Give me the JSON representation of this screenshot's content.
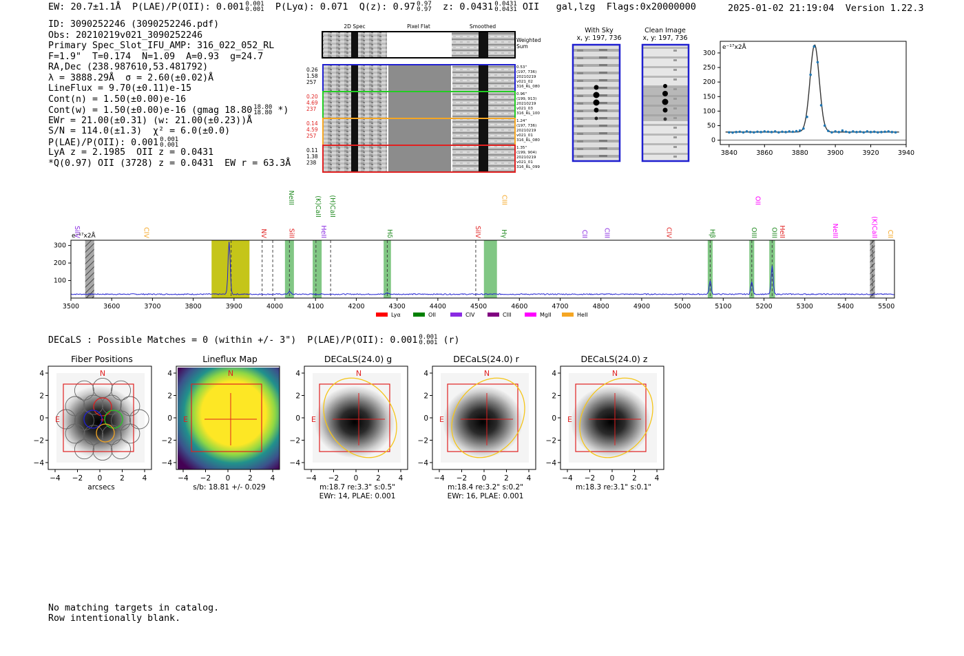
{
  "header": {
    "ew": "EW: 20.7±1.1Å",
    "plae_label": "P(LAE)/P(OII): 0.001",
    "plae_hi": "0.001",
    "plae_lo": "0.001",
    "plya": "P(Lyα): 0.071",
    "qz_label": "Q(z): 0.97",
    "qz_hi": "0.97",
    "qz_lo": "0.97",
    "z_label": "z: 0.0431",
    "z_hi": "0.0431",
    "z_lo": "0.0431",
    "line": "OII",
    "class": "gal,lzg",
    "flags": "Flags:0x20000000",
    "timestamp": "2025-01-02 21:19:04",
    "version": "Version 1.22.3"
  },
  "info": {
    "id": "ID: 3090252246 (3090252246.pdf)",
    "obs": "Obs: 20210219v021_3090252246",
    "primary": "Primary Spec_Slot_IFU_AMP: 316_022_052_RL",
    "params": "F=1.9\"  T=0.174  N=1.09  A=0.93  g=24.7",
    "radec": "RA,Dec (238.987610,53.481792)",
    "lambda": "λ = 3888.29Å  σ = 2.60(±0.02)Å",
    "lineflux": "LineFlux = 9.70(±0.11)e-15",
    "contn": "Cont(n) = 1.50(±0.00)e-16",
    "contw_a": "Cont(w) = 1.50(±0.00)e-16 (gmag 18.80",
    "contw_hi": "18.80",
    "contw_lo": "18.80",
    "contw_b": "*)",
    "ewr": "EWr = 21.00(±0.31) (w: 21.00(±0.23))Å",
    "sn": "S/N = 114.0(±1.3)  χ² = 6.0(±0.0)",
    "plae_a": "P(LAE)/P(OII): 0.001",
    "plae_hi": "0.001",
    "plae_lo": "0.001",
    "lya": "LyA z = 2.1985  OII z = 0.0431",
    "q": "*Q(0.97) OII (3728) z = 0.0431  EW r = 63.3Å"
  },
  "fibers": {
    "col_titles": [
      "2D Spec",
      "Pixel Flat",
      "Smoothed"
    ],
    "weighted_label_1": "Weighted",
    "weighted_label_2": "Sum",
    "rows": [
      {
        "color": "#1f1fd0",
        "stats": [
          "0.26",
          "1.58",
          "257"
        ],
        "stat_color": "#000000",
        "info": [
          "0.53\"",
          "(197, 736)",
          "20210219",
          "v021_02",
          "316_RL_080"
        ]
      },
      {
        "color": "#22cc22",
        "stats": [
          "0.20",
          "4.69",
          "237"
        ],
        "stat_color": "#e02020",
        "info": [
          "0.96\"",
          "(199, 913)",
          "20210219",
          "v021_03",
          "316_RL_100"
        ]
      },
      {
        "color": "#f5a623",
        "stats": [
          "0.14",
          "4.59",
          "257"
        ],
        "stat_color": "#e02020",
        "info": [
          "1.24\"",
          "(197, 736)",
          "20210219",
          "v021_01",
          "316_RL_080"
        ]
      },
      {
        "color": "#e02020",
        "stats": [
          "0.11",
          "1.38",
          "238"
        ],
        "stat_color": "#000000",
        "info": [
          "1.35\"",
          "(199, 904)",
          "20210219",
          "v021_01",
          "316_RL_099"
        ]
      }
    ]
  },
  "sky": {
    "with_sky_title": "With Sky",
    "with_sky_coords": "x, y: 197, 736",
    "clean_title": "Clean Image",
    "clean_coords": "x, y: 197, 736"
  },
  "zoom_plot": {
    "unit_label": "e⁻¹⁷x2Å",
    "chart_data": {
      "type": "line",
      "xlim": [
        3835,
        3940
      ],
      "ylim": [
        -15,
        340
      ],
      "xticks": [
        3840,
        3860,
        3880,
        3900,
        3920,
        3940
      ],
      "yticks": [
        0,
        50,
        100,
        150,
        200,
        250,
        300
      ],
      "fit_center": 3888.3,
      "fit_sigma": 2.6,
      "fit_peak": 300,
      "fit_cont": 28,
      "points_x": [
        3840,
        3842,
        3844,
        3846,
        3848,
        3850,
        3852,
        3854,
        3856,
        3858,
        3860,
        3862,
        3864,
        3866,
        3868,
        3870,
        3872,
        3874,
        3876,
        3878,
        3880,
        3882,
        3884,
        3886,
        3888,
        3890,
        3892,
        3894,
        3896,
        3898,
        3900,
        3902,
        3904,
        3906,
        3908,
        3910,
        3912,
        3914,
        3916,
        3918,
        3920,
        3922,
        3924,
        3926,
        3928,
        3930,
        3932,
        3934
      ],
      "points_y": [
        27,
        26,
        28,
        29,
        27,
        30,
        28,
        27,
        29,
        28,
        30,
        29,
        28,
        30,
        27,
        29,
        28,
        30,
        29,
        31,
        33,
        40,
        80,
        225,
        322,
        268,
        120,
        50,
        32,
        27,
        30,
        28,
        33,
        29,
        27,
        30,
        28,
        29,
        27,
        30,
        28,
        29,
        27,
        28,
        29,
        30,
        28,
        27
      ]
    }
  },
  "main_spectrum": {
    "unit_label": "e⁻¹⁷x2Å",
    "chart_data": {
      "type": "line",
      "xlim": [
        3500,
        5520
      ],
      "ylim": [
        0,
        330
      ],
      "xticks": [
        3500,
        3600,
        3700,
        3800,
        3900,
        4000,
        4100,
        4200,
        4300,
        4400,
        4500,
        4600,
        4700,
        4800,
        4900,
        5000,
        5100,
        5200,
        5300,
        5400,
        5500
      ],
      "yticks": [
        100,
        200,
        300
      ],
      "continuum": 22,
      "peaks": [
        {
          "x": 3888,
          "h": 300,
          "s": 2.6
        },
        {
          "x": 4036,
          "h": 15,
          "s": 3
        },
        {
          "x": 4276,
          "h": 8,
          "s": 3
        },
        {
          "x": 5068,
          "h": 75,
          "s": 2.5
        },
        {
          "x": 5170,
          "h": 70,
          "s": 2.5
        },
        {
          "x": 5220,
          "h": 160,
          "s": 2.5
        }
      ],
      "yellow_band": [
        3845,
        3938
      ],
      "green_bands": [
        [
          4025,
          4047
        ],
        [
          4093,
          4115
        ],
        [
          4267,
          4285
        ],
        [
          4513,
          4545
        ],
        [
          5062,
          5074
        ],
        [
          5164,
          5176
        ],
        [
          5213,
          5227
        ]
      ],
      "hatched_bands": [
        [
          3535,
          3557
        ],
        [
          5460,
          5472
        ]
      ],
      "dashed_lines": [
        3893,
        3969,
        3995,
        4036,
        4101,
        4137,
        4276,
        4493,
        5068,
        5170,
        5220,
        5466
      ],
      "line_labels": [
        {
          "text": "SiIV",
          "x": 3510,
          "color": "#8a2be2",
          "tier": 0
        },
        {
          "text": "CIV",
          "x": 3680,
          "color": "#f5a623",
          "tier": 0
        },
        {
          "text": "NeIII",
          "x": 4035,
          "color": "#228b22",
          "tier": 2
        },
        {
          "text": "NV",
          "x": 3968,
          "color": "#e02020",
          "tier": 0
        },
        {
          "text": "SiII",
          "x": 4036,
          "color": "#e02020",
          "tier": 0
        },
        {
          "text": "(K)CaII",
          "x": 4101,
          "color": "#228b22",
          "tier": 1
        },
        {
          "text": "HeII",
          "x": 4115,
          "color": "#8a2be2",
          "tier": 0
        },
        {
          "text": "(H)CaII",
          "x": 4137,
          "color": "#228b22",
          "tier": 1
        },
        {
          "text": "Hδ",
          "x": 4277,
          "color": "#228b22",
          "tier": 0
        },
        {
          "text": "SiIV",
          "x": 4493,
          "color": "#e02020",
          "tier": 0
        },
        {
          "text": "CIII",
          "x": 4558,
          "color": "#f5a623",
          "tier": 2
        },
        {
          "text": "Hγ",
          "x": 4557,
          "color": "#228b22",
          "tier": 0
        },
        {
          "text": "CII",
          "x": 4755,
          "color": "#8a2be2",
          "tier": 0
        },
        {
          "text": "CIII",
          "x": 4810,
          "color": "#8a2be2",
          "tier": 0
        },
        {
          "text": "CIV",
          "x": 4962,
          "color": "#e02020",
          "tier": 0
        },
        {
          "text": "Hβ",
          "x": 5068,
          "color": "#228b22",
          "tier": 0
        },
        {
          "text": "OII",
          "x": 5180,
          "color": "#ff00ff",
          "tier": 2
        },
        {
          "text": "OIII",
          "x": 5170,
          "color": "#228b22",
          "tier": 0
        },
        {
          "text": "OIII",
          "x": 5220,
          "color": "#228b22",
          "tier": 0
        },
        {
          "text": "HeII",
          "x": 5240,
          "color": "#e02020",
          "tier": 0
        },
        {
          "text": "NeIII",
          "x": 5370,
          "color": "#ff00ff",
          "tier": 0
        },
        {
          "text": "(K)CaII",
          "x": 5466,
          "color": "#ff00ff",
          "tier": 0
        },
        {
          "text": "CII",
          "x": 5505,
          "color": "#f5a623",
          "tier": 0
        }
      ],
      "legend": [
        {
          "label": "Lyα",
          "color": "#ff0000"
        },
        {
          "label": "OII",
          "color": "#008000"
        },
        {
          "label": "CIV",
          "color": "#8a2be2"
        },
        {
          "label": "CIII",
          "color": "#800080"
        },
        {
          "label": "MgII",
          "color": "#ff00ff"
        },
        {
          "label": "HeII",
          "color": "#f5a623"
        }
      ]
    }
  },
  "decals": {
    "line_a": "DECaLS : Possible Matches = 0 (within +/- 3\")  P(LAE)/P(OII): 0.001",
    "hi": "0.001",
    "lo": "0.001",
    "line_b": "(r)"
  },
  "cutouts": [
    {
      "title": "Fiber Positions",
      "cap1": "arcsecs",
      "cap2": "",
      "kind": "fiber",
      "ellipse_angle": 0
    },
    {
      "title": "Lineflux Map",
      "cap1": "s/b: 18.81 +/- 0.029",
      "cap2": "",
      "kind": "flux",
      "ellipse_angle": 0
    },
    {
      "title": "DECaLS(24.0) g",
      "cap1": "m:18.7  re:3.3\"  s:0.5\"",
      "cap2": "EWr: 14, PLAE: 0.001",
      "kind": "decals",
      "ellipse_angle": -35
    },
    {
      "title": "DECaLS(24.0) r",
      "cap1": "m:18.4  re:3.2\"  s:0.2\"",
      "cap2": "EWr: 16, PLAE: 0.001",
      "kind": "decals",
      "ellipse_angle": 35
    },
    {
      "title": "DECaLS(24.0) z",
      "cap1": "m:18.3  re:3.1\"  s:0.1\"",
      "cap2": "",
      "kind": "decals",
      "ellipse_angle": 35
    }
  ],
  "cutout_axes": {
    "north": "N",
    "east": "E",
    "ticks": [
      "4",
      "2",
      "0",
      "−2",
      "−4"
    ]
  },
  "footer": {
    "line1": "No matching targets in catalog.",
    "line2": "Row intentionally blank."
  }
}
